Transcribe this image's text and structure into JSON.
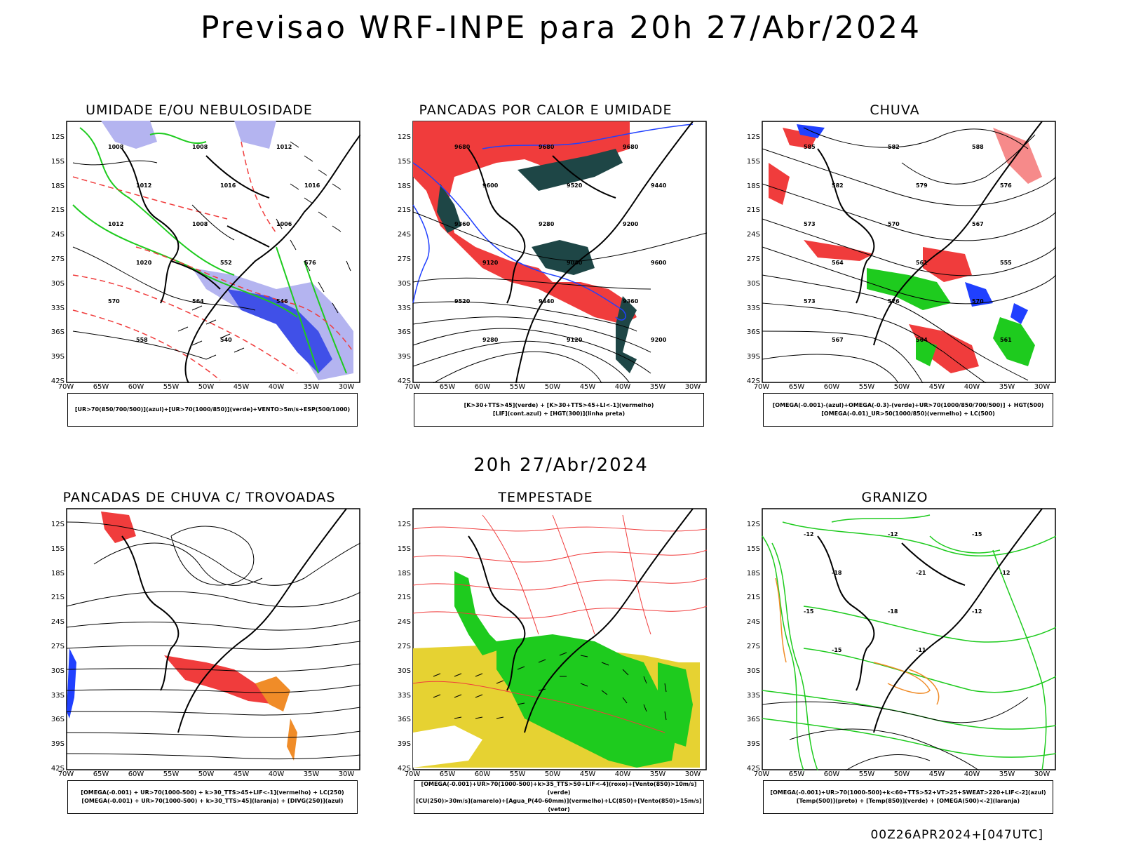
{
  "title": "Previsao WRF-INPE  para 20h 27/Abr/2024",
  "subtitle": "20h 27/Abr/2024",
  "footer": "00Z26APR2024+[047UTC]",
  "axes": {
    "lat_labels": [
      "12S",
      "15S",
      "18S",
      "21S",
      "24S",
      "27S",
      "30S",
      "33S",
      "36S",
      "39S",
      "42S"
    ],
    "lon_labels": [
      "70W",
      "65W",
      "60W",
      "55W",
      "50W",
      "45W",
      "40W",
      "35W",
      "30W"
    ]
  },
  "panels": [
    {
      "title": "UMIDADE E/OU NEBULOSIDADE",
      "legend": [
        "[UR>70(850/700/500)](azul)+[UR>70(1000/850)](verde)+VENTO>5m/s+ESP(500/1000)"
      ]
    },
    {
      "title": "PANCADAS POR CALOR E UMIDADE",
      "legend": [
        "[K>30+TTS>45](verde) + [K>30+TTS>45+LI<-1](vermelho)",
        "[LIF](cont.azul) + [HGT(300)](linha preta)"
      ]
    },
    {
      "title": "CHUVA",
      "legend": [
        "[OMEGA(-0.001)-(azul)+OMEGA(-0.3)-(verde)+UR>70(1000/850/700/500)] + HGT(500)",
        "[OMEGA(-0.01)_UR>50(1000/850)(vermelho) + LC(500)"
      ]
    },
    {
      "title": "PANCADAS DE CHUVA C/ TROVOADAS",
      "legend": [
        "[OMEGA(-0.001) + UR>70(1000-500) + k>30_TTS>45+LIF<-1](vermelho) + LC(250)",
        "[OMEGA(-0.001) + UR>70(1000-500) + k>30_TTS>45](laranja) + [DIVG(250)](azul)"
      ]
    },
    {
      "title": "TEMPESTADE",
      "legend": [
        "[OMEGA(-0.001)+UR>70(1000-500)+k>35_TTS>50+LIF<-4](roxo)+[Vento(850)>10m/s](verde)",
        "[CU(250)>30m/s](amarelo)+[Agua_P(40-60mm)](vermelho)+LC(850)+[Vento(850)>15m/s](vetor)"
      ]
    },
    {
      "title": "GRANIZO",
      "legend": [
        "[OMEGA(-0.001)+UR>70(1000-500)+k<60+TTS>52+VT>25+SWEAT>220+LIF<-2](azul)",
        "[Temp(500)](preto) + [Temp(850)](verde) + [OMEGA(500)<-2](laranja)"
      ]
    }
  ],
  "contour_labels": {
    "p1": [
      "1008",
      "1008",
      "1012",
      "1012",
      "1016",
      "1016",
      "1012",
      "1008",
      "1006",
      "1020",
      "552",
      "576",
      "570",
      "564",
      "546",
      "558",
      "540"
    ],
    "p2": [
      "9680",
      "9680",
      "9680",
      "9600",
      "9520",
      "9440",
      "9360",
      "9280",
      "9200",
      "9120",
      "9040",
      "9600",
      "9520",
      "9440",
      "9360",
      "9280",
      "9120",
      "9200"
    ],
    "p3": [
      "585",
      "582",
      "588",
      "582",
      "579",
      "576",
      "573",
      "570",
      "567",
      "564",
      "561",
      "555",
      "573",
      "576",
      "570",
      "567",
      "564",
      "561"
    ],
    "p6": [
      "-12",
      "-12",
      "-15",
      "-18",
      "-21",
      "-12",
      "-15",
      "-18",
      "-12",
      "-15",
      "-11"
    ]
  },
  "colors": {
    "border": "#000000",
    "red": "#f03c3c",
    "green": "#1ecb1e",
    "blue": "#2040ff",
    "lightblue": "#b4b4f0",
    "darkteal": "#1e4646",
    "yellow": "#e6d232",
    "orange": "#f08c28"
  }
}
